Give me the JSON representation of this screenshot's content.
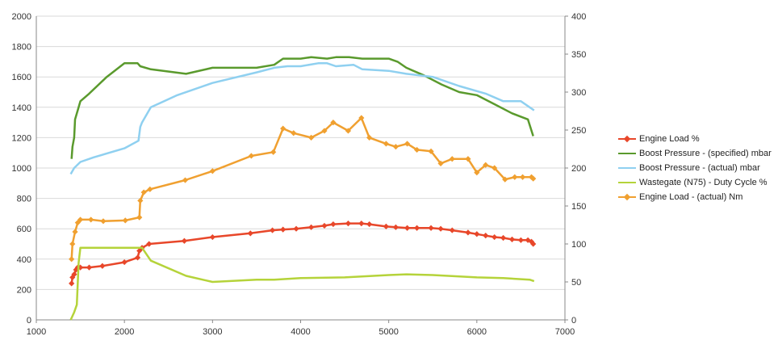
{
  "chart_data": {
    "type": "line",
    "title": "",
    "xlabel": "",
    "ylabel": "",
    "y2label": "",
    "xlim": [
      1000,
      7000
    ],
    "ylim": [
      0,
      2000
    ],
    "y2lim": [
      0,
      400
    ],
    "x_ticks": [
      "1000",
      "2000",
      "3000",
      "4000",
      "5000",
      "6000",
      "7000"
    ],
    "y_ticks": [
      "0",
      "200",
      "400",
      "600",
      "800",
      "1000",
      "1200",
      "1400",
      "1600",
      "1800",
      "2000"
    ],
    "y2_ticks": [
      "0",
      "50",
      "100",
      "150",
      "200",
      "250",
      "300",
      "350",
      "400"
    ],
    "grid": "horizontal",
    "legend_position": "right",
    "series": [
      {
        "name": "Engine Load  %",
        "color": "#e8472a",
        "axis": "right",
        "markers": true,
        "points": [
          [
            1400,
            48
          ],
          [
            1410,
            56
          ],
          [
            1430,
            60
          ],
          [
            1450,
            66
          ],
          [
            1470,
            69
          ],
          [
            1500,
            69
          ],
          [
            1600,
            69
          ],
          [
            1750,
            71
          ],
          [
            2000,
            76
          ],
          [
            2150,
            82
          ],
          [
            2170,
            91
          ],
          [
            2200,
            95
          ],
          [
            2280,
            100
          ],
          [
            2680,
            104
          ],
          [
            3000,
            109
          ],
          [
            3430,
            114
          ],
          [
            3680,
            118
          ],
          [
            3800,
            119
          ],
          [
            3950,
            120
          ],
          [
            4120,
            122
          ],
          [
            4270,
            124
          ],
          [
            4370,
            126
          ],
          [
            4540,
            127
          ],
          [
            4690,
            127
          ],
          [
            4780,
            126
          ],
          [
            4970,
            123
          ],
          [
            5080,
            122
          ],
          [
            5210,
            121
          ],
          [
            5320,
            121
          ],
          [
            5480,
            121
          ],
          [
            5590,
            120
          ],
          [
            5720,
            118
          ],
          [
            5900,
            115
          ],
          [
            6000,
            113
          ],
          [
            6100,
            111
          ],
          [
            6200,
            109
          ],
          [
            6300,
            108
          ],
          [
            6400,
            106
          ],
          [
            6500,
            105
          ],
          [
            6580,
            105
          ],
          [
            6620,
            103
          ],
          [
            6640,
            100
          ]
        ]
      },
      {
        "name": "Boost Pressure - (specified)  mbar",
        "color": "#5a9a2d",
        "axis": "left",
        "markers": false,
        "points": [
          [
            1400,
            1060
          ],
          [
            1410,
            1140
          ],
          [
            1430,
            1200
          ],
          [
            1440,
            1320
          ],
          [
            1470,
            1380
          ],
          [
            1500,
            1440
          ],
          [
            1600,
            1490
          ],
          [
            1800,
            1600
          ],
          [
            2000,
            1690
          ],
          [
            2150,
            1690
          ],
          [
            2180,
            1670
          ],
          [
            2300,
            1650
          ],
          [
            2700,
            1620
          ],
          [
            3000,
            1660
          ],
          [
            3500,
            1660
          ],
          [
            3700,
            1680
          ],
          [
            3800,
            1720
          ],
          [
            4000,
            1720
          ],
          [
            4120,
            1730
          ],
          [
            4300,
            1720
          ],
          [
            4400,
            1730
          ],
          [
            4550,
            1730
          ],
          [
            4700,
            1720
          ],
          [
            5000,
            1720
          ],
          [
            5100,
            1700
          ],
          [
            5200,
            1660
          ],
          [
            5400,
            1610
          ],
          [
            5600,
            1550
          ],
          [
            5800,
            1500
          ],
          [
            6000,
            1480
          ],
          [
            6200,
            1420
          ],
          [
            6400,
            1360
          ],
          [
            6580,
            1320
          ],
          [
            6640,
            1210
          ]
        ]
      },
      {
        "name": "Boost Pressure - (actual)  mbar",
        "color": "#8fd0f0",
        "axis": "left",
        "markers": false,
        "points": [
          [
            1390,
            960
          ],
          [
            1430,
            1000
          ],
          [
            1500,
            1040
          ],
          [
            1650,
            1070
          ],
          [
            2000,
            1130
          ],
          [
            2160,
            1180
          ],
          [
            2180,
            1270
          ],
          [
            2200,
            1300
          ],
          [
            2300,
            1400
          ],
          [
            2600,
            1480
          ],
          [
            3000,
            1560
          ],
          [
            3500,
            1630
          ],
          [
            3700,
            1660
          ],
          [
            3850,
            1670
          ],
          [
            4000,
            1670
          ],
          [
            4200,
            1690
          ],
          [
            4300,
            1690
          ],
          [
            4400,
            1670
          ],
          [
            4600,
            1680
          ],
          [
            4700,
            1650
          ],
          [
            5000,
            1640
          ],
          [
            5200,
            1620
          ],
          [
            5500,
            1600
          ],
          [
            5800,
            1540
          ],
          [
            6100,
            1490
          ],
          [
            6300,
            1440
          ],
          [
            6500,
            1440
          ],
          [
            6600,
            1400
          ],
          [
            6650,
            1380
          ]
        ]
      },
      {
        "name": "Wastegate (N75) - Duty Cycle  %",
        "color": "#b5d33a",
        "axis": "right",
        "markers": false,
        "points": [
          [
            1390,
            0
          ],
          [
            1430,
            10
          ],
          [
            1460,
            20
          ],
          [
            1480,
            75
          ],
          [
            1500,
            95
          ],
          [
            1700,
            95
          ],
          [
            2100,
            95
          ],
          [
            2200,
            95
          ],
          [
            2300,
            78
          ],
          [
            2700,
            58
          ],
          [
            3000,
            50
          ],
          [
            3500,
            53
          ],
          [
            3700,
            53
          ],
          [
            4000,
            55
          ],
          [
            4500,
            56
          ],
          [
            5000,
            59
          ],
          [
            5200,
            60
          ],
          [
            5500,
            59
          ],
          [
            6000,
            56
          ],
          [
            6300,
            55
          ],
          [
            6600,
            53
          ],
          [
            6650,
            51
          ]
        ]
      },
      {
        "name": "Engine Load - (actual)  Nm",
        "color": "#f0a030",
        "axis": "right",
        "markers": true,
        "points": [
          [
            1400,
            80
          ],
          [
            1410,
            100
          ],
          [
            1440,
            116
          ],
          [
            1470,
            128
          ],
          [
            1500,
            132
          ],
          [
            1620,
            132
          ],
          [
            1760,
            130
          ],
          [
            2010,
            131
          ],
          [
            2170,
            135
          ],
          [
            2180,
            157
          ],
          [
            2220,
            168
          ],
          [
            2290,
            172
          ],
          [
            2690,
            184
          ],
          [
            3000,
            196
          ],
          [
            3440,
            216
          ],
          [
            3690,
            221
          ],
          [
            3800,
            252
          ],
          [
            3920,
            246
          ],
          [
            4120,
            240
          ],
          [
            4270,
            249
          ],
          [
            4370,
            260
          ],
          [
            4540,
            249
          ],
          [
            4690,
            266
          ],
          [
            4780,
            240
          ],
          [
            4970,
            232
          ],
          [
            5080,
            228
          ],
          [
            5210,
            232
          ],
          [
            5320,
            224
          ],
          [
            5480,
            222
          ],
          [
            5590,
            206
          ],
          [
            5720,
            212
          ],
          [
            5900,
            212
          ],
          [
            6000,
            194
          ],
          [
            6100,
            204
          ],
          [
            6200,
            200
          ],
          [
            6320,
            185
          ],
          [
            6430,
            188
          ],
          [
            6520,
            188
          ],
          [
            6620,
            188
          ],
          [
            6640,
            186
          ]
        ]
      }
    ]
  }
}
